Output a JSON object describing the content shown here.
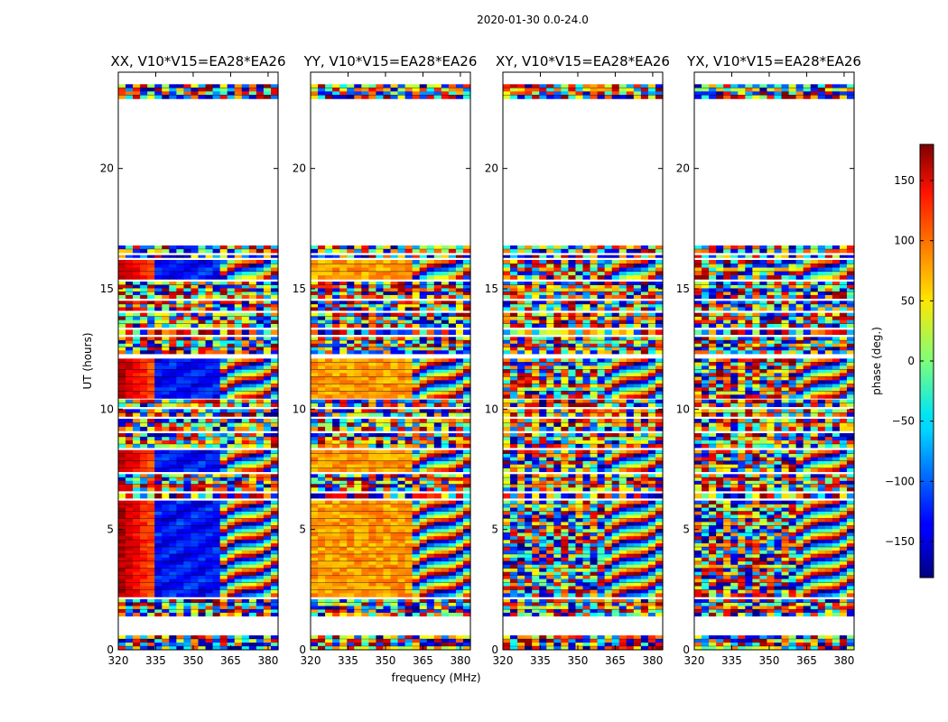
{
  "chart_data": {
    "type": "heatmap",
    "suptitle": "2020-01-30 0.0-24.0",
    "xlabel": "frequency (MHz)",
    "ylabel": "UT (hours)",
    "xlim": [
      320,
      384
    ],
    "ylim": [
      0,
      24
    ],
    "xticks": [
      "320",
      "335",
      "350",
      "365",
      "380"
    ],
    "yticks": [
      "0",
      "5",
      "10",
      "15",
      "20"
    ],
    "panels": [
      {
        "title": "XX, V10*V15=EA28*EA26",
        "pattern": "xx"
      },
      {
        "title": "YY, V10*V15=EA28*EA26",
        "pattern": "yy"
      },
      {
        "title": "XY, V10*V15=EA28*EA26",
        "pattern": "cross"
      },
      {
        "title": "YX, V10*V15=EA28*EA26",
        "pattern": "cross"
      }
    ],
    "colorbar": {
      "label": "phase (deg.)",
      "range": [
        -180,
        180
      ],
      "ticks": [
        "150",
        "100",
        "50",
        "0",
        "−50",
        "−100",
        "−150"
      ],
      "colormap": "jet"
    },
    "data_bands_ut": [
      [
        0.0,
        0.6
      ],
      [
        1.4,
        2.1
      ],
      [
        2.2,
        6.2
      ],
      [
        6.3,
        6.5
      ],
      [
        6.6,
        7.3
      ],
      [
        7.4,
        8.3
      ],
      [
        8.4,
        9.0
      ],
      [
        9.1,
        9.6
      ],
      [
        9.7,
        10.0
      ],
      [
        10.1,
        10.4
      ],
      [
        10.45,
        12.1
      ],
      [
        12.3,
        13.0
      ],
      [
        13.1,
        13.3
      ],
      [
        13.4,
        14.0
      ],
      [
        14.1,
        14.5
      ],
      [
        14.6,
        15.3
      ],
      [
        15.4,
        16.2
      ],
      [
        16.3,
        16.4
      ],
      [
        16.5,
        16.8
      ],
      [
        22.9,
        23.5
      ]
    ]
  }
}
